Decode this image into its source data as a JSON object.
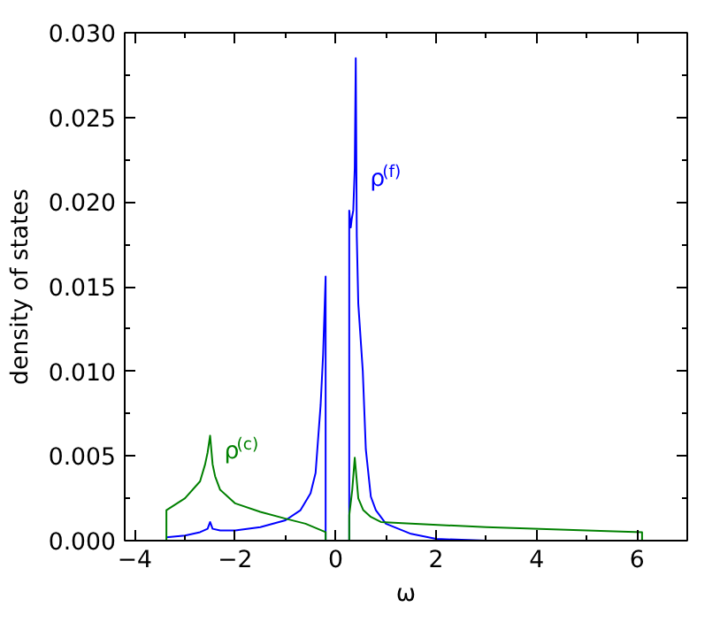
{
  "chart_data": {
    "type": "line",
    "xlabel": "ω",
    "ylabel": "density of states",
    "xlim": [
      -4.2,
      7
    ],
    "ylim": [
      0,
      0.03
    ],
    "xticks": [
      {
        "value": -4,
        "label": "−4"
      },
      {
        "value": -2,
        "label": "−2"
      },
      0,
      2,
      4,
      6
    ],
    "yticks": [
      {
        "value": 0,
        "label": "0.000"
      },
      {
        "value": 0.005,
        "label": "0.005"
      },
      {
        "value": 0.01,
        "label": "0.010"
      },
      {
        "value": 0.015,
        "label": "0.015"
      },
      {
        "value": 0.02,
        "label": "0.020"
      },
      {
        "value": 0.025,
        "label": "0.025"
      },
      {
        "value": 0.03,
        "label": "0.030"
      }
    ],
    "grid": false,
    "line_style": "solid",
    "marker": "none",
    "series": [
      {
        "name": "ρ$^{(f)}$",
        "color": "#0000ff",
        "x": [
          -3.37,
          -3.0,
          -2.7,
          -2.55,
          -2.5,
          -2.45,
          -2.3,
          -2.0,
          -1.5,
          -1.0,
          -0.7,
          -0.5,
          -0.4,
          -0.3,
          -0.25,
          -0.2,
          -0.2,
          null,
          0.27,
          0.27,
          0.3,
          0.32,
          0.35,
          0.38,
          0.4,
          0.42,
          0.45,
          0.54,
          0.6,
          0.7,
          0.8,
          1.0,
          1.5,
          2.0,
          3.0
        ],
        "values": [
          0.0002,
          0.0003,
          0.0005,
          0.0007,
          0.0011,
          0.0007,
          0.0006,
          0.0006,
          0.0008,
          0.0012,
          0.0018,
          0.0028,
          0.004,
          0.008,
          0.011,
          0.0156,
          0,
          null,
          0,
          0.0195,
          0.0185,
          0.019,
          0.0195,
          0.022,
          0.0285,
          0.018,
          0.014,
          0.01,
          0.0054,
          0.0026,
          0.0018,
          0.001,
          0.0004,
          0.0001,
          0
        ]
      },
      {
        "name": "ρ$^{(c)}$",
        "color": "#008000",
        "x": [
          -3.37,
          -3.37,
          -3.0,
          -2.7,
          -2.6,
          -2.55,
          -2.5,
          -2.45,
          -2.4,
          -2.3,
          -2.0,
          -1.5,
          -1.0,
          -0.6,
          -0.2,
          -0.2,
          null,
          0.27,
          0.27,
          0.33,
          0.38,
          0.45,
          0.55,
          0.7,
          0.9,
          1.5,
          3.0,
          5.0,
          6.1,
          6.1
        ],
        "values": [
          0,
          0.0018,
          0.0025,
          0.0035,
          0.0045,
          0.0052,
          0.0062,
          0.0045,
          0.0038,
          0.003,
          0.0022,
          0.0017,
          0.0013,
          0.001,
          0.0005,
          0,
          null,
          0,
          0.0015,
          0.003,
          0.0049,
          0.0025,
          0.0018,
          0.0014,
          0.0011,
          0.001,
          0.0008,
          0.0006,
          0.0005,
          0
        ]
      }
    ]
  }
}
